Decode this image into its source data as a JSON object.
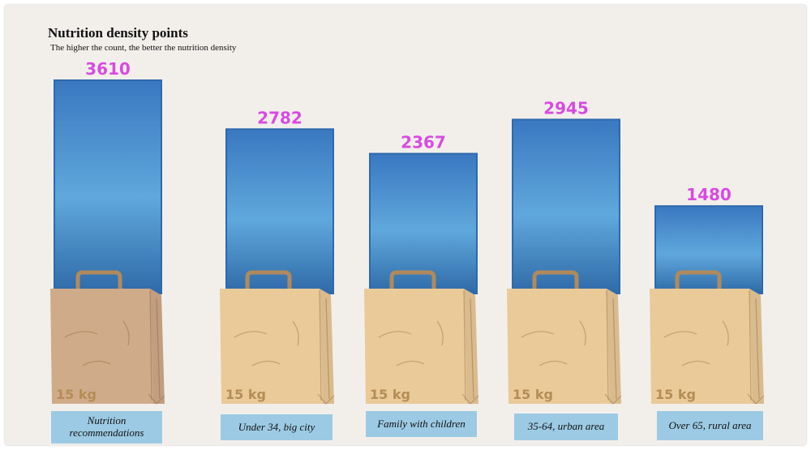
{
  "title": "Nutrition density points",
  "subtitle": "The higher the count, the better the nutrition density",
  "chart_data": {
    "type": "bar",
    "title": "Nutrition density points",
    "subtitle": "The higher the count, the better the nutrition density",
    "categories": [
      "Nutrition recommendations",
      "Under 34, big city",
      "Family with children",
      "35-64, urban area",
      "Over 65, rural area"
    ],
    "values": [
      3610,
      2782,
      2367,
      2945,
      1480
    ],
    "bag_labels": [
      "15 kg",
      "15 kg",
      "15 kg",
      "15 kg",
      "15 kg"
    ],
    "colors": {
      "bar_top": "#3a78c0",
      "bar_mid": "#5fa8dc",
      "value_text": "#d84be0",
      "bag_highlighted": "#d0ab89",
      "bag_default": "#eaca98",
      "category_box": "#9ccae4"
    }
  }
}
